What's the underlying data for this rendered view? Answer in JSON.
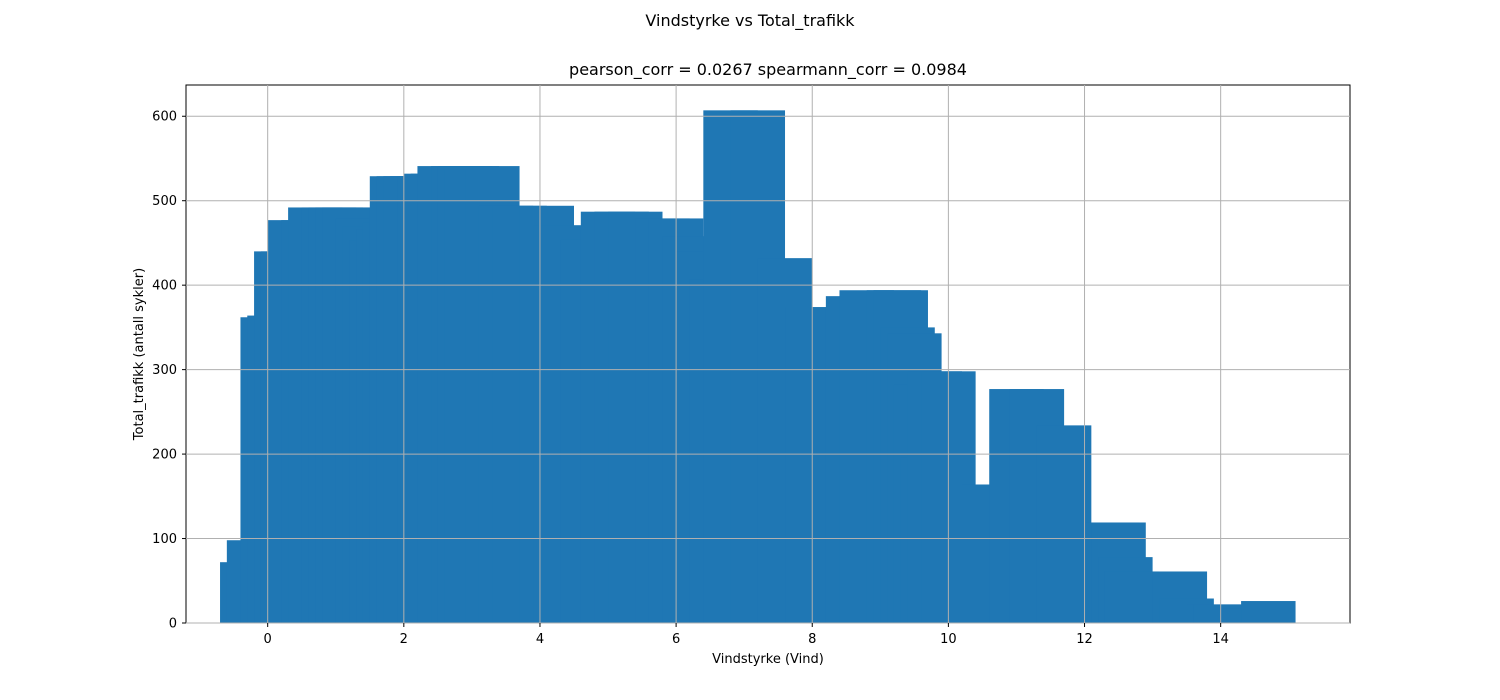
{
  "figure_title": "Vindstyrke vs Total_trafikk",
  "axes_title": "pearson_corr = 0.0267 spearmann_corr = 0.0984",
  "chart_data": {
    "type": "bar",
    "bar_color": "#1f77b4",
    "bar_width": 0.8,
    "x": [
      -0.3,
      -0.2,
      0,
      0.1,
      0.2,
      0.3,
      0.4,
      0.6,
      0.7,
      0.9,
      1.0,
      1.1,
      1.2,
      1.4,
      1.5,
      1.6,
      1.7,
      1.8,
      1.9,
      2.0,
      2.1,
      2.2,
      2.3,
      2.4,
      2.5,
      2.6,
      2.8,
      2.9,
      3.0,
      3.3,
      3.5,
      3.7,
      4.1,
      4.3,
      4.7,
      5.0,
      5.2,
      5.4,
      5.8,
      6.0,
      6.2,
      6.4,
      6.6,
      6.8,
      7.2,
      7.6,
      8.0,
      8.4,
      8.6,
      8.8,
      9.2,
      9.3,
      9.4,
      9.5,
      9.6,
      9.7,
      9.8,
      10.0,
      10.6,
      11.0,
      11.3,
      11.7,
      12.4,
      12.5,
      12.6,
      12.7,
      13.4,
      13.5,
      13.9,
      14.0,
      14.4,
      14.7
    ],
    "values": [
      72,
      98,
      362,
      364,
      440,
      440,
      477,
      477,
      492,
      492,
      492,
      492,
      492,
      479,
      470,
      453,
      466,
      474,
      529,
      529,
      529,
      529,
      529,
      532,
      532,
      541,
      541,
      541,
      541,
      541,
      494,
      494,
      494,
      471,
      454,
      487,
      487,
      487,
      479,
      479,
      458,
      440,
      407,
      607,
      607,
      432,
      374,
      374,
      387,
      394,
      394,
      394,
      350,
      343,
      282,
      196,
      298,
      298,
      164,
      277,
      277,
      234,
      119,
      119,
      78,
      61,
      61,
      29,
      22,
      22,
      17,
      26
    ],
    "xlabel": "Vindstyrke (Vind)",
    "ylabel": "Total_trafikk (antall sykler)",
    "xlim": [
      -1.2,
      15.9
    ],
    "ylim": [
      0,
      637
    ],
    "xticks": [
      0,
      2,
      4,
      6,
      8,
      10,
      12,
      14
    ],
    "yticks": [
      0,
      100,
      200,
      300,
      400,
      500,
      600
    ],
    "grid": true
  }
}
